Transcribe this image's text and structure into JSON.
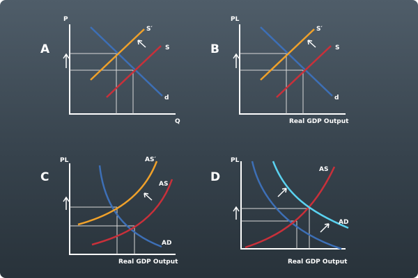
{
  "colors": {
    "axis": "#ffffff",
    "guide": "#d9d9d9",
    "demand_blue": "#3d6fb6",
    "supply_red": "#c9303a",
    "shifted_orange": "#f0a12a",
    "shifted_light_blue": "#5ad2f0"
  },
  "panels": [
    {
      "letter": "A",
      "y_axis_label": "P",
      "x_axis_label": "Q",
      "x_axis_title": "",
      "curve_labels": {
        "demand": "d",
        "supply": "S",
        "shifted": "S′"
      },
      "shift_direction": "up-left"
    },
    {
      "letter": "B",
      "y_axis_label": "PL",
      "x_axis_label": "",
      "x_axis_title": "Real GDP Output",
      "curve_labels": {
        "demand": "d",
        "supply": "S",
        "shifted": "S′"
      },
      "shift_direction": "up-left"
    },
    {
      "letter": "C",
      "y_axis_label": "PL",
      "x_axis_label": "",
      "x_axis_title": "Real GDP Output",
      "curve_labels": {
        "demand": "AD",
        "supply": "AS",
        "shifted": "AS′"
      },
      "shift_direction": "up-left"
    },
    {
      "letter": "D",
      "y_axis_label": "PL",
      "x_axis_label": "",
      "x_axis_title": "Real GDP Output",
      "curve_labels": {
        "demand": "",
        "supply": "AS",
        "shifted": "AD"
      },
      "shift_direction": "up-right"
    }
  ],
  "icons": {
    "price_rise": "up-arrow-icon",
    "shift": "shift-arrow-icon"
  }
}
